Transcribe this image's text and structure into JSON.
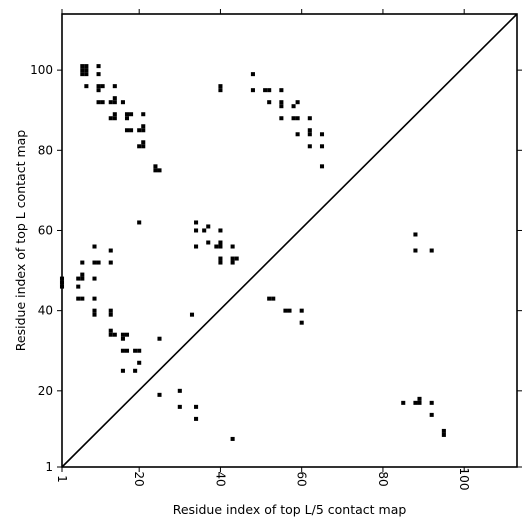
{
  "chart_data": {
    "type": "scatter",
    "title": "",
    "xlabel": "Residue index of top L/5 contact map",
    "ylabel": "Residue index of top L contact map",
    "xlim": [
      1,
      113
    ],
    "ylim": [
      1,
      114
    ],
    "xticks": [
      1,
      20,
      40,
      60,
      80,
      100
    ],
    "yticks": [
      1,
      20,
      40,
      60,
      80,
      100
    ],
    "grid": false,
    "diagonal": true,
    "marker_color": "#000000",
    "series": [
      {
        "points": [
          [
            1,
            46
          ],
          [
            1,
            47
          ],
          [
            1,
            48
          ],
          [
            5,
            43
          ],
          [
            5,
            46
          ],
          [
            5,
            48
          ],
          [
            6,
            43
          ],
          [
            6,
            48
          ],
          [
            6,
            49
          ],
          [
            6,
            52
          ],
          [
            9,
            39
          ],
          [
            9,
            40
          ],
          [
            9,
            43
          ],
          [
            9,
            48
          ],
          [
            9,
            52
          ],
          [
            9,
            56
          ],
          [
            10,
            52
          ],
          [
            13,
            34
          ],
          [
            13,
            35
          ],
          [
            13,
            39
          ],
          [
            13,
            40
          ],
          [
            13,
            52
          ],
          [
            13,
            55
          ],
          [
            14,
            34
          ],
          [
            16,
            25
          ],
          [
            16,
            30
          ],
          [
            16,
            33
          ],
          [
            16,
            34
          ],
          [
            17,
            30
          ],
          [
            17,
            34
          ],
          [
            19,
            25
          ],
          [
            19,
            30
          ],
          [
            20,
            27
          ],
          [
            20,
            30
          ],
          [
            20,
            62
          ],
          [
            25,
            19
          ],
          [
            25,
            33
          ],
          [
            30,
            16
          ],
          [
            30,
            20
          ],
          [
            34,
            13
          ],
          [
            34,
            16
          ],
          [
            33,
            39
          ],
          [
            34,
            56
          ],
          [
            34,
            60
          ],
          [
            34,
            62
          ],
          [
            36,
            60
          ],
          [
            37,
            57
          ],
          [
            37,
            61
          ],
          [
            39,
            56
          ],
          [
            40,
            52
          ],
          [
            40,
            53
          ],
          [
            40,
            56
          ],
          [
            40,
            57
          ],
          [
            40,
            60
          ],
          [
            43,
            8
          ],
          [
            43,
            52
          ],
          [
            43,
            53
          ],
          [
            43,
            56
          ],
          [
            44,
            53
          ],
          [
            52,
            43
          ],
          [
            53,
            43
          ],
          [
            56,
            40
          ],
          [
            57,
            40
          ],
          [
            60,
            37
          ],
          [
            60,
            40
          ],
          [
            85,
            17
          ],
          [
            88,
            17
          ],
          [
            88,
            55
          ],
          [
            88,
            59
          ],
          [
            89,
            17
          ],
          [
            89,
            18
          ],
          [
            92,
            14
          ],
          [
            92,
            17
          ],
          [
            92,
            55
          ],
          [
            95,
            9
          ],
          [
            95,
            10
          ],
          [
            6,
            99
          ],
          [
            6,
            100
          ],
          [
            6,
            101
          ],
          [
            7,
            96
          ],
          [
            7,
            99
          ],
          [
            7,
            100
          ],
          [
            7,
            101
          ],
          [
            10,
            92
          ],
          [
            10,
            95
          ],
          [
            10,
            96
          ],
          [
            10,
            99
          ],
          [
            10,
            101
          ],
          [
            11,
            92
          ],
          [
            11,
            96
          ],
          [
            13,
            88
          ],
          [
            13,
            92
          ],
          [
            14,
            88
          ],
          [
            14,
            89
          ],
          [
            14,
            92
          ],
          [
            14,
            93
          ],
          [
            14,
            96
          ],
          [
            16,
            92
          ],
          [
            17,
            85
          ],
          [
            17,
            88
          ],
          [
            17,
            89
          ],
          [
            18,
            85
          ],
          [
            18,
            89
          ],
          [
            20,
            81
          ],
          [
            20,
            85
          ],
          [
            21,
            81
          ],
          [
            21,
            82
          ],
          [
            21,
            85
          ],
          [
            21,
            86
          ],
          [
            21,
            89
          ],
          [
            24,
            75
          ],
          [
            24,
            76
          ],
          [
            25,
            75
          ],
          [
            40,
            95
          ],
          [
            40,
            96
          ],
          [
            48,
            95
          ],
          [
            48,
            99
          ],
          [
            51,
            95
          ],
          [
            52,
            92
          ],
          [
            52,
            95
          ],
          [
            55,
            88
          ],
          [
            55,
            91
          ],
          [
            55,
            92
          ],
          [
            55,
            95
          ],
          [
            58,
            88
          ],
          [
            58,
            91
          ],
          [
            59,
            84
          ],
          [
            59,
            88
          ],
          [
            59,
            92
          ],
          [
            62,
            81
          ],
          [
            62,
            84
          ],
          [
            62,
            85
          ],
          [
            62,
            88
          ],
          [
            65,
            76
          ],
          [
            65,
            81
          ],
          [
            65,
            84
          ]
        ]
      }
    ]
  }
}
